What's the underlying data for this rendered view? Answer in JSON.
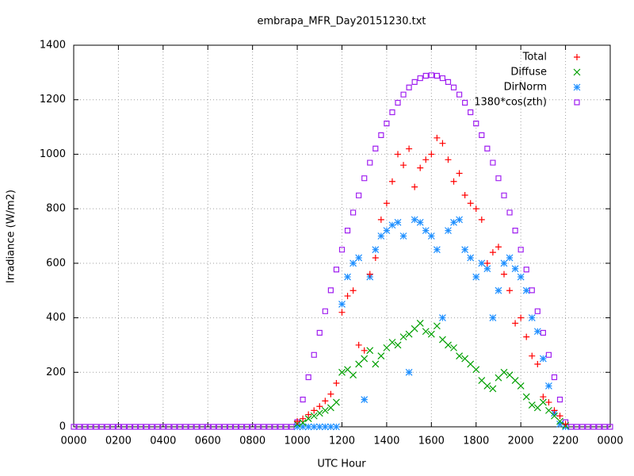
{
  "chart_data": {
    "type": "scatter",
    "title": "embrapa_MFR_Day20151230.txt",
    "x_label": "UTC Hour",
    "y_label": "Irradiance (W/m2)",
    "xlim": [
      0,
      24
    ],
    "ylim": [
      0,
      1400
    ],
    "xticks": [
      {
        "value": 0,
        "label": "0000"
      },
      {
        "value": 2,
        "label": "0200"
      },
      {
        "value": 4,
        "label": "0400"
      },
      {
        "value": 6,
        "label": "0600"
      },
      {
        "value": 8,
        "label": "0800"
      },
      {
        "value": 10,
        "label": "1000"
      },
      {
        "value": 12,
        "label": "1200"
      },
      {
        "value": 14,
        "label": "1400"
      },
      {
        "value": 16,
        "label": "1600"
      },
      {
        "value": 18,
        "label": "1800"
      },
      {
        "value": 20,
        "label": "2000"
      },
      {
        "value": 22,
        "label": "2200"
      },
      {
        "value": 24,
        "label": "0000"
      }
    ],
    "yticks": [
      0,
      200,
      400,
      600,
      800,
      1000,
      1200,
      1400
    ],
    "grid": true,
    "legend": "top right",
    "x": [
      0,
      0.25,
      0.5,
      0.75,
      1,
      1.25,
      1.5,
      1.75,
      2,
      2.25,
      2.5,
      2.75,
      3,
      3.25,
      3.5,
      3.75,
      4,
      4.25,
      4.5,
      4.75,
      5,
      5.25,
      5.5,
      5.75,
      6,
      6.25,
      6.5,
      6.75,
      7,
      7.25,
      7.5,
      7.75,
      8,
      8.25,
      8.5,
      8.75,
      9,
      9.25,
      9.5,
      9.75,
      10,
      10.25,
      10.5,
      10.75,
      11,
      11.25,
      11.5,
      11.75,
      12,
      12.25,
      12.5,
      12.75,
      13,
      13.25,
      13.5,
      13.75,
      14,
      14.25,
      14.5,
      14.75,
      15,
      15.25,
      15.5,
      15.75,
      16,
      16.25,
      16.5,
      16.75,
      17,
      17.25,
      17.5,
      17.75,
      18,
      18.25,
      18.5,
      18.75,
      19,
      19.25,
      19.5,
      19.75,
      20,
      20.25,
      20.5,
      20.75,
      21,
      21.25,
      21.5,
      21.75,
      22,
      22.25,
      22.5,
      22.75,
      23,
      23.25,
      23.5,
      23.75,
      24
    ],
    "series": [
      {
        "name": "Total",
        "color": "#ff0000",
        "marker": "plus",
        "values": [
          null,
          null,
          null,
          null,
          null,
          null,
          null,
          null,
          null,
          null,
          null,
          null,
          null,
          null,
          null,
          null,
          null,
          null,
          null,
          null,
          null,
          null,
          null,
          null,
          null,
          null,
          null,
          null,
          null,
          null,
          null,
          null,
          null,
          null,
          null,
          null,
          null,
          null,
          null,
          null,
          20,
          30,
          45,
          60,
          75,
          95,
          120,
          160,
          420,
          480,
          500,
          300,
          280,
          560,
          620,
          760,
          820,
          900,
          1000,
          960,
          1020,
          880,
          950,
          980,
          1000,
          1060,
          1040,
          980,
          900,
          930,
          850,
          820,
          800,
          760,
          600,
          640,
          660,
          560,
          500,
          380,
          400,
          330,
          260,
          230,
          110,
          90,
          60,
          40,
          10,
          null,
          null,
          null,
          null,
          null,
          null,
          null,
          null
        ]
      },
      {
        "name": "Diffuse",
        "color": "#00a000",
        "marker": "cross",
        "values": [
          null,
          null,
          null,
          null,
          null,
          null,
          null,
          null,
          null,
          null,
          null,
          null,
          null,
          null,
          null,
          null,
          null,
          null,
          null,
          null,
          null,
          null,
          null,
          null,
          null,
          null,
          null,
          null,
          null,
          null,
          null,
          null,
          null,
          null,
          null,
          null,
          null,
          null,
          null,
          null,
          10,
          15,
          30,
          40,
          50,
          60,
          70,
          90,
          200,
          210,
          190,
          230,
          250,
          280,
          230,
          260,
          290,
          310,
          300,
          330,
          340,
          360,
          380,
          350,
          340,
          370,
          320,
          300,
          290,
          260,
          250,
          230,
          210,
          170,
          150,
          140,
          180,
          200,
          190,
          170,
          150,
          110,
          80,
          70,
          90,
          60,
          40,
          20,
          5,
          null,
          null,
          null,
          null,
          null,
          null,
          null,
          null
        ]
      },
      {
        "name": "DirNorm",
        "color": "#1e8fff",
        "marker": "star",
        "values": [
          null,
          null,
          null,
          null,
          null,
          null,
          null,
          null,
          null,
          null,
          null,
          null,
          null,
          null,
          null,
          null,
          null,
          null,
          null,
          null,
          null,
          null,
          null,
          null,
          null,
          null,
          null,
          null,
          null,
          null,
          null,
          null,
          null,
          null,
          null,
          null,
          null,
          null,
          null,
          null,
          0,
          0,
          0,
          0,
          0,
          0,
          0,
          0,
          450,
          550,
          600,
          620,
          100,
          550,
          650,
          700,
          720,
          740,
          750,
          700,
          200,
          760,
          750,
          720,
          700,
          650,
          400,
          720,
          750,
          760,
          650,
          620,
          550,
          600,
          580,
          400,
          500,
          600,
          620,
          580,
          550,
          500,
          400,
          350,
          250,
          150,
          50,
          10,
          0,
          null,
          null,
          null,
          null,
          null,
          null,
          null,
          null
        ]
      },
      {
        "name": "1380*cos(zth)",
        "color": "#a020f0",
        "marker": "square",
        "values": [
          0,
          0,
          0,
          0,
          0,
          0,
          0,
          0,
          0,
          0,
          0,
          0,
          0,
          0,
          0,
          0,
          0,
          0,
          0,
          0,
          0,
          0,
          0,
          0,
          0,
          0,
          0,
          0,
          0,
          0,
          0,
          0,
          0,
          0,
          0,
          0,
          0,
          0,
          0,
          0,
          17,
          100,
          182,
          264,
          345,
          424,
          501,
          577,
          650,
          720,
          786,
          849,
          912,
          969,
          1021,
          1070,
          1113,
          1154,
          1189,
          1219,
          1245,
          1265,
          1279,
          1288,
          1290,
          1288,
          1279,
          1265,
          1245,
          1219,
          1189,
          1154,
          1113,
          1070,
          1021,
          969,
          912,
          849,
          786,
          720,
          650,
          577,
          501,
          424,
          345,
          264,
          182,
          100,
          17,
          0,
          0,
          0,
          0,
          0,
          0,
          0,
          0
        ]
      }
    ]
  }
}
